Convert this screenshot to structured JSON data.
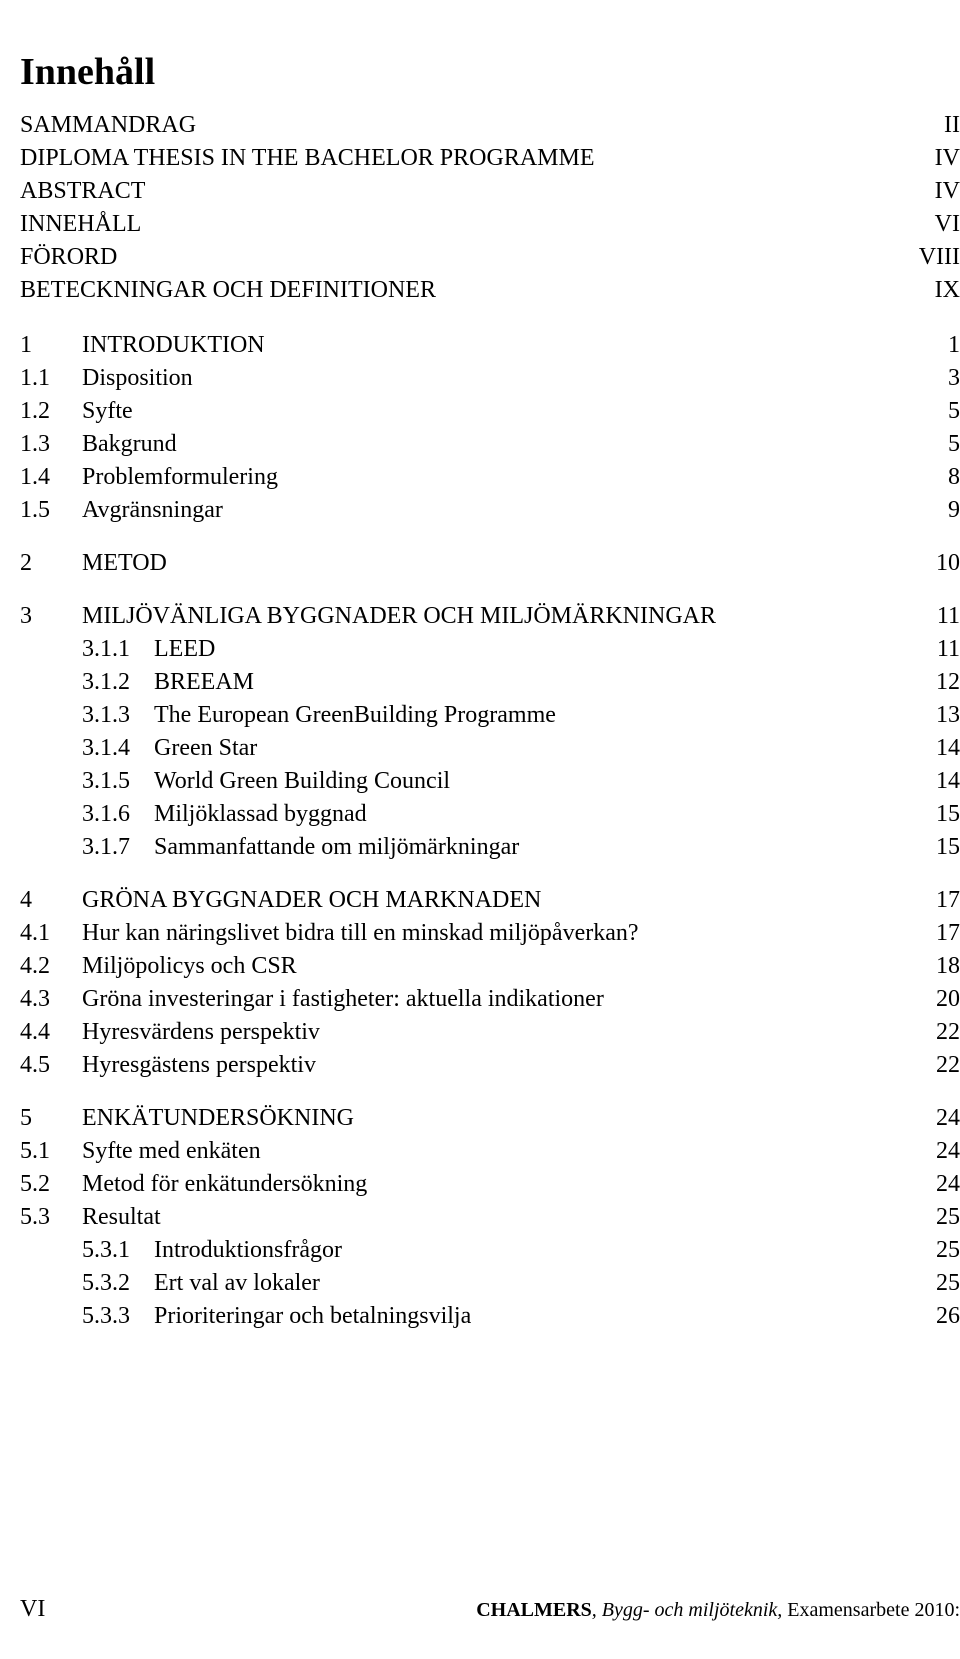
{
  "title": "Innehåll",
  "frontMatter": [
    {
      "label": "SAMMANDRAG",
      "page": "II"
    },
    {
      "label": "DIPLOMA THESIS IN THE BACHELOR PROGRAMME",
      "page": "IV"
    },
    {
      "label": "ABSTRACT",
      "page": "IV"
    },
    {
      "label": "INNEHÅLL",
      "page": "VI"
    },
    {
      "label": "FÖRORD",
      "page": "VIII"
    },
    {
      "label": "BETECKNINGAR OCH DEFINITIONER",
      "page": "IX"
    }
  ],
  "chapters": [
    {
      "num": "1",
      "label": "INTRODUKTION",
      "page": "1",
      "sections": [
        {
          "num": "1.1",
          "label": "Disposition",
          "page": "3"
        },
        {
          "num": "1.2",
          "label": "Syfte",
          "page": "5"
        },
        {
          "num": "1.3",
          "label": "Bakgrund",
          "page": "5"
        },
        {
          "num": "1.4",
          "label": "Problemformulering",
          "page": "8"
        },
        {
          "num": "1.5",
          "label": "Avgränsningar",
          "page": "9"
        }
      ]
    },
    {
      "num": "2",
      "label": "METOD",
      "page": "10",
      "sections": []
    },
    {
      "num": "3",
      "label": "MILJÖVÄNLIGA BYGGNADER OCH MILJÖMÄRKNINGAR",
      "page": "11",
      "sections": [],
      "subsections": [
        {
          "num": "3.1.1",
          "label": "LEED",
          "page": "11"
        },
        {
          "num": "3.1.2",
          "label": "BREEAM",
          "page": "12"
        },
        {
          "num": "3.1.3",
          "label": "The European GreenBuilding Programme",
          "page": "13"
        },
        {
          "num": "3.1.4",
          "label": "Green Star",
          "page": "14"
        },
        {
          "num": "3.1.5",
          "label": "World Green Building Council",
          "page": "14"
        },
        {
          "num": "3.1.6",
          "label": "Miljöklassad byggnad",
          "page": "15"
        },
        {
          "num": "3.1.7",
          "label": "Sammanfattande om miljömärkningar",
          "page": "15"
        }
      ]
    },
    {
      "num": "4",
      "label": "GRÖNA BYGGNADER OCH MARKNADEN",
      "page": "17",
      "sections": [
        {
          "num": "4.1",
          "label": "Hur kan näringslivet bidra till en minskad miljöpåverkan?",
          "page": "17"
        },
        {
          "num": "4.2",
          "label": "Miljöpolicys och CSR",
          "page": "18"
        },
        {
          "num": "4.3",
          "label": "Gröna investeringar i fastigheter: aktuella indikationer",
          "page": "20"
        },
        {
          "num": "4.4",
          "label": "Hyresvärdens perspektiv",
          "page": "22"
        },
        {
          "num": "4.5",
          "label": "Hyresgästens perspektiv",
          "page": "22"
        }
      ]
    },
    {
      "num": "5",
      "label": "ENKÄTUNDERSÖKNING",
      "page": "24",
      "sections": [
        {
          "num": "5.1",
          "label": "Syfte med enkäten",
          "page": "24"
        },
        {
          "num": "5.2",
          "label": "Metod för enkätundersökning",
          "page": "24"
        },
        {
          "num": "5.3",
          "label": "Resultat",
          "page": "25",
          "subsections": [
            {
              "num": "5.3.1",
              "label": "Introduktionsfrågor",
              "page": "25"
            },
            {
              "num": "5.3.2",
              "label": "Ert val av lokaler",
              "page": "25"
            },
            {
              "num": "5.3.3",
              "label": "Prioriteringar och betalningsvilja",
              "page": "26"
            }
          ]
        }
      ]
    }
  ],
  "footer": {
    "leftPageNum": "VI",
    "source_bold": "CHALMERS",
    "source_italic": ", Bygg- och miljöteknik,",
    "source_tail": " Examensarbete 2010:"
  },
  "style": {
    "background_color": "#ffffff",
    "text_color": "#000000",
    "title_fontsize_pt": 28,
    "body_fontsize_pt": 18,
    "font_family": "Times New Roman"
  }
}
